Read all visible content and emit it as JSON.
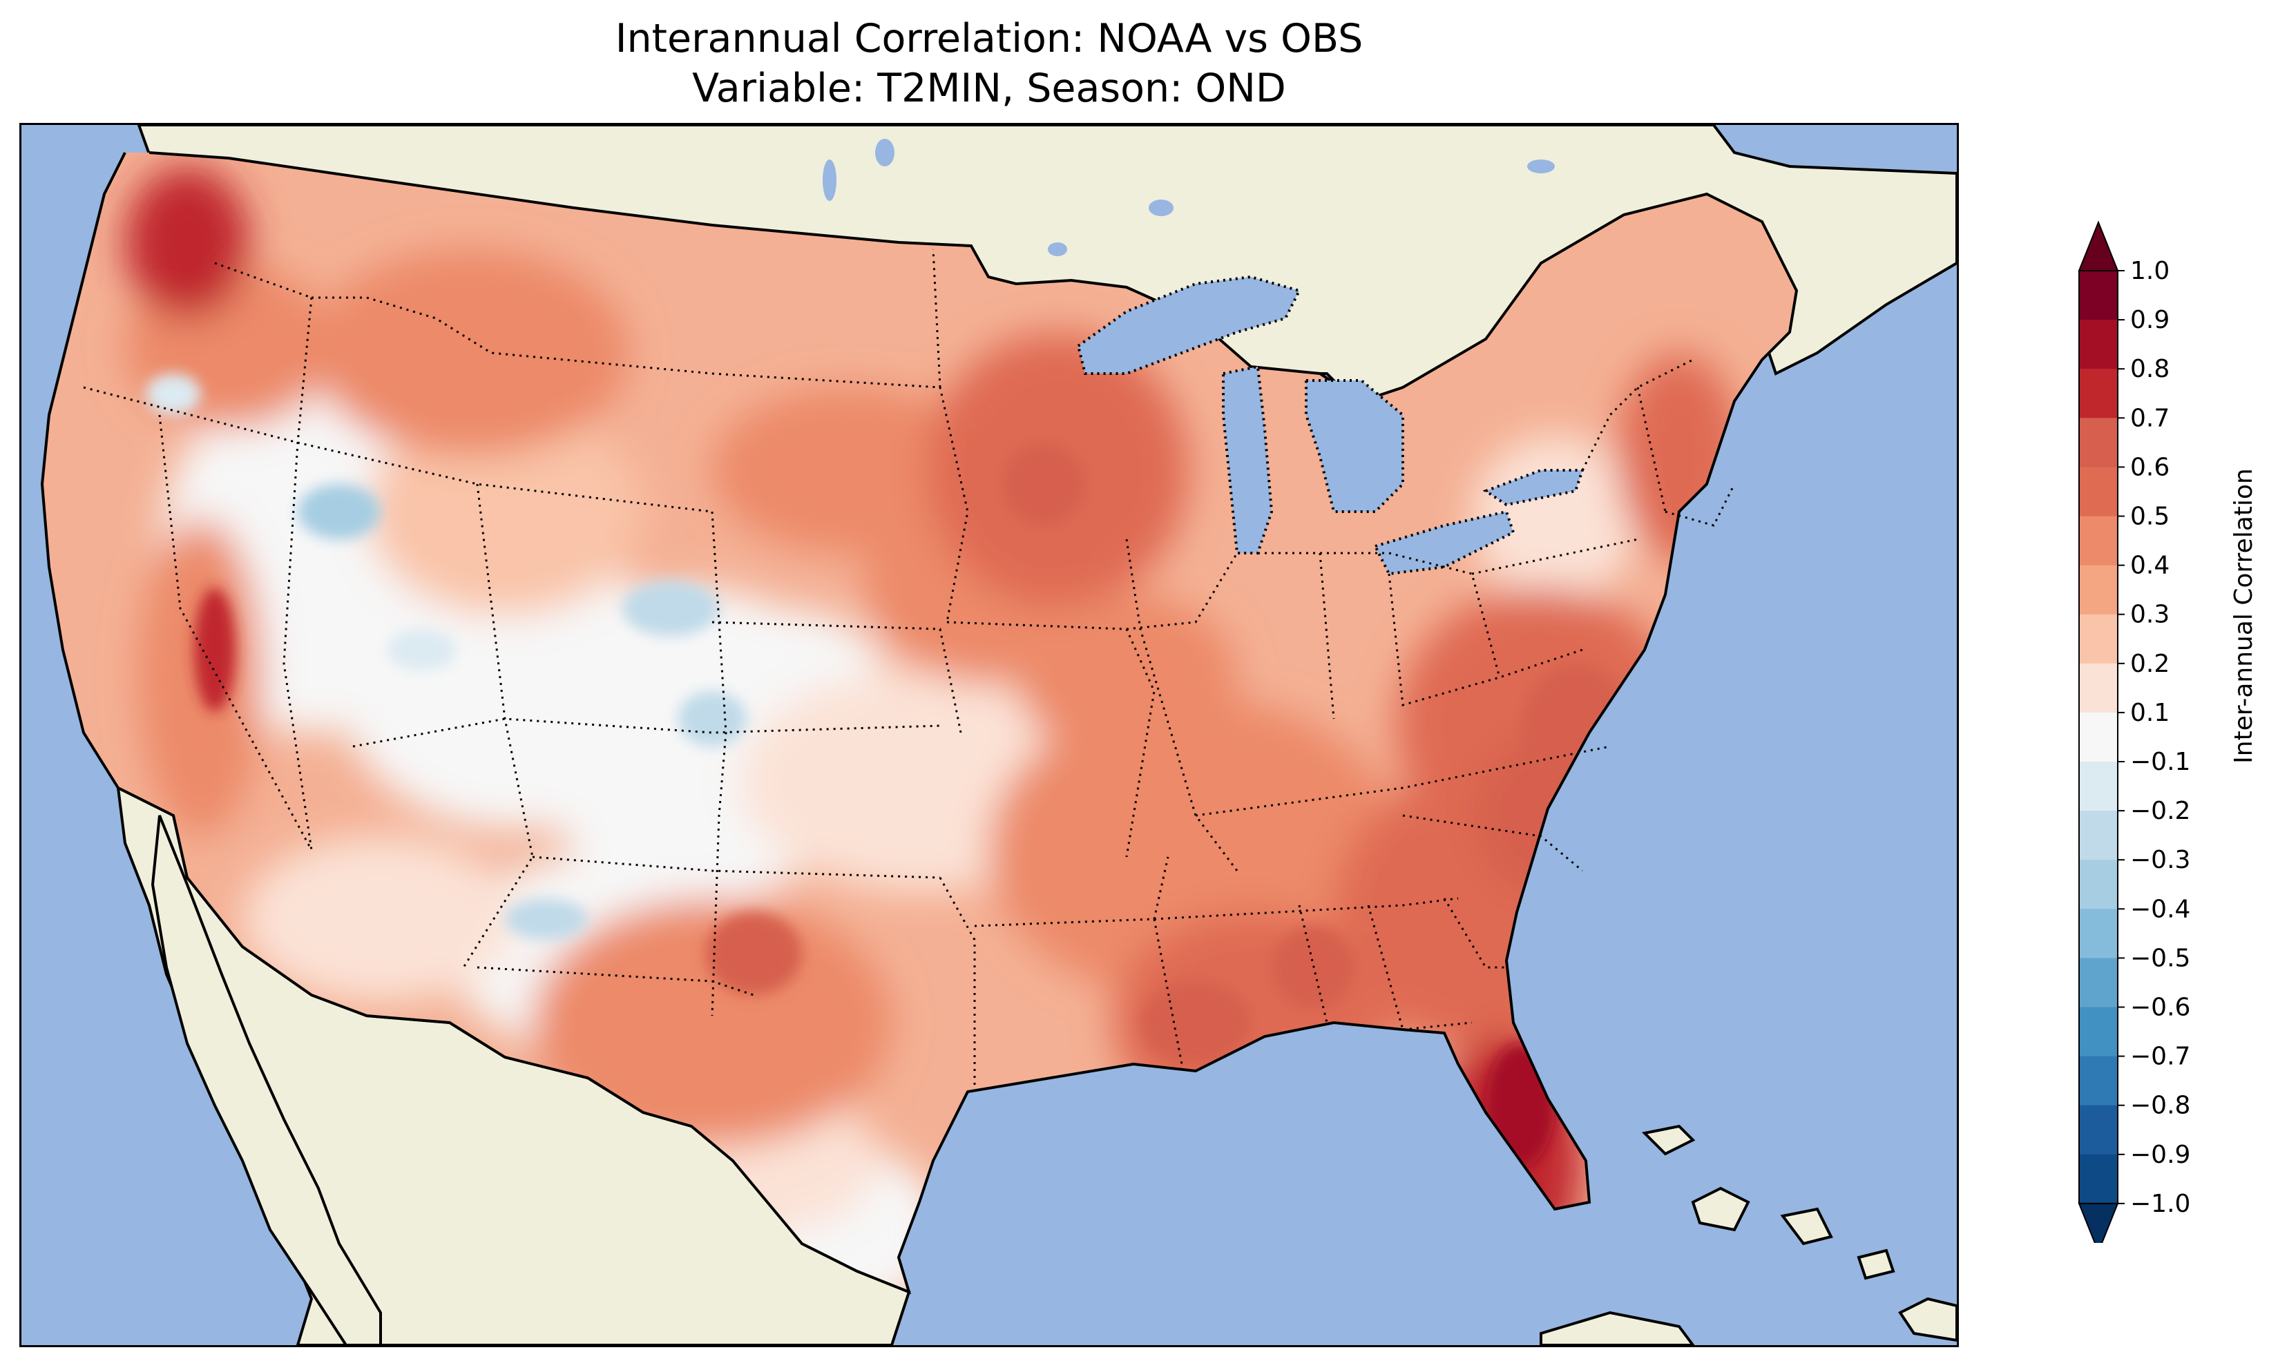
{
  "figure": {
    "title_line1": "Interannual Correlation: NOAA vs OBS",
    "title_line2": "Variable: T2MIN, Season: OND"
  },
  "map": {
    "region": "Contiguous United States",
    "ocean_color": "#97b6e1",
    "land_color": "#efefdb",
    "lake_color": "#97b6e1",
    "coastline_color": "#000000",
    "border_style": "dotted"
  },
  "colorbar": {
    "label": "Inter-annual Correlation",
    "extend": "both",
    "ticks": [
      "1.0",
      "0.9",
      "0.8",
      "0.7",
      "0.6",
      "0.5",
      "0.4",
      "0.3",
      "0.2",
      "0.1",
      "−0.1",
      "−0.2",
      "−0.3",
      "−0.4",
      "−0.5",
      "−0.6",
      "−0.7",
      "−0.8",
      "−0.9",
      "−1.0"
    ],
    "levels_top_to_bottom": [
      {
        "range": "0.9 to 1.0",
        "color": "#7d0025"
      },
      {
        "range": "0.8 to 0.9",
        "color": "#a50f26"
      },
      {
        "range": "0.7 to 0.8",
        "color": "#c0272d"
      },
      {
        "range": "0.6 to 0.7",
        "color": "#d6604d"
      },
      {
        "range": "0.5 to 0.6",
        "color": "#df6b52"
      },
      {
        "range": "0.4 to 0.5",
        "color": "#ec8a69"
      },
      {
        "range": "0.3 to 0.4",
        "color": "#f4a582"
      },
      {
        "range": "0.2 to 0.3",
        "color": "#f9c4a9"
      },
      {
        "range": "0.1 to 0.2",
        "color": "#fbe2d6"
      },
      {
        "range": "-0.1 to 0.1",
        "color": "#f7f7f7"
      },
      {
        "range": "-0.2 to -0.1",
        "color": "#dceaf2"
      },
      {
        "range": "-0.3 to -0.2",
        "color": "#c0dae9"
      },
      {
        "range": "-0.4 to -0.3",
        "color": "#a6cde2"
      },
      {
        "range": "-0.5 to -0.4",
        "color": "#86bcdb"
      },
      {
        "range": "-0.6 to -0.5",
        "color": "#5fa4cc"
      },
      {
        "range": "-0.7 to -0.6",
        "color": "#4191c3"
      },
      {
        "range": "-0.8 to -0.7",
        "color": "#2f79b5"
      },
      {
        "range": "-0.9 to -0.8",
        "color": "#1c5c9d"
      },
      {
        "range": "-1.0 to -0.9",
        "color": "#0e4b86"
      }
    ],
    "under_color": "#053061",
    "over_color": "#67001f"
  }
}
